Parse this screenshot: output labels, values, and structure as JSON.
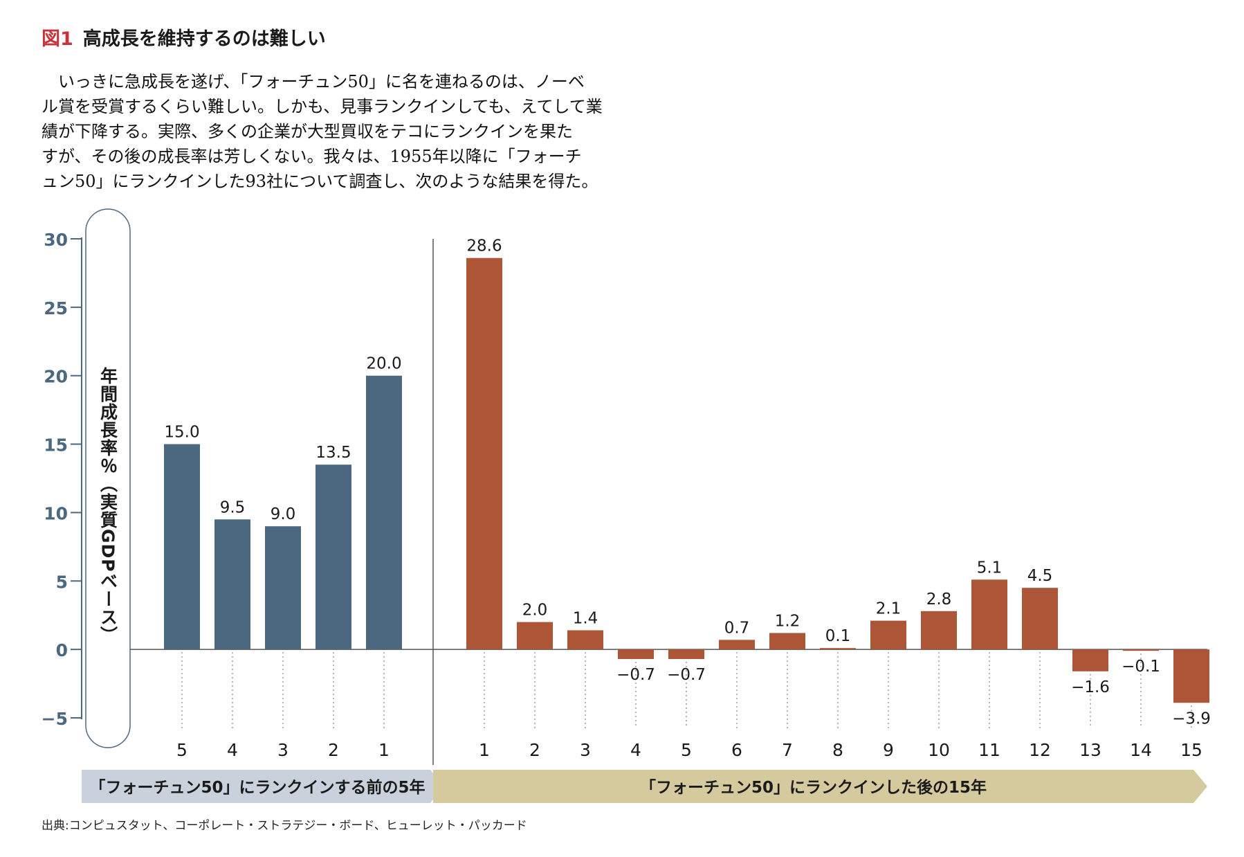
{
  "heading": {
    "fig_label": "図1",
    "title": "高成長を維持するのは難しい"
  },
  "lead_lines": [
    "いっきに急成長を遂げ、「フォーチュン50」に名を連ねるのは、ノーベ",
    "ル賞を受賞するくらい難しい。しかも、見事ランクインしても、えてして業",
    "績が下降する。実際、多くの企業が大型買収をテコにランクインを果た",
    "すが、その後の成長率は芳しくない。我々は、1955年以降に「フォーチ",
    "ュン50」にランクインした93社について調査し、次のような結果を得た。"
  ],
  "source": "出典:コンピュスタット、コーポレート・ストラテジー・ボード、ヒューレット・パッカード",
  "colors": {
    "before": "#4b6880",
    "after": "#ad5637",
    "band_before": "#c9d2dc",
    "band_after": "#d5ca9e",
    "axis": "#4b6880"
  },
  "chart_data": {
    "type": "bar",
    "ylabel": "年間成長率％（実質GDPベース）",
    "ylim": [
      -5,
      30
    ],
    "yticks": [
      "30",
      "25",
      "20",
      "15",
      "10",
      "5",
      "0",
      "−5"
    ],
    "ytick_values": [
      30,
      25,
      20,
      15,
      10,
      5,
      0,
      -5
    ],
    "series": [
      {
        "name": "「フォーチュン50」にランクインする前の5年",
        "categories": [
          "5",
          "4",
          "3",
          "2",
          "1"
        ],
        "values": [
          15.0,
          9.5,
          9.0,
          13.5,
          20.0
        ],
        "labels": [
          "15.0",
          "9.5",
          "9.0",
          "13.5",
          "20.0"
        ]
      },
      {
        "name": "「フォーチュン50」にランクインした後の15年",
        "categories": [
          "1",
          "2",
          "3",
          "4",
          "5",
          "6",
          "7",
          "8",
          "9",
          "10",
          "11",
          "12",
          "13",
          "14",
          "15"
        ],
        "values": [
          28.6,
          2.0,
          1.4,
          -0.7,
          -0.7,
          0.7,
          1.2,
          0.1,
          2.1,
          2.8,
          5.1,
          4.5,
          -1.6,
          -0.1,
          -3.9
        ],
        "labels": [
          "28.6",
          "2.0",
          "1.4",
          "−0.7",
          "−0.7",
          "0.7",
          "1.2",
          "0.1",
          "2.1",
          "2.8",
          "5.1",
          "4.5",
          "−1.6",
          "−0.1",
          "−3.9"
        ]
      }
    ]
  }
}
